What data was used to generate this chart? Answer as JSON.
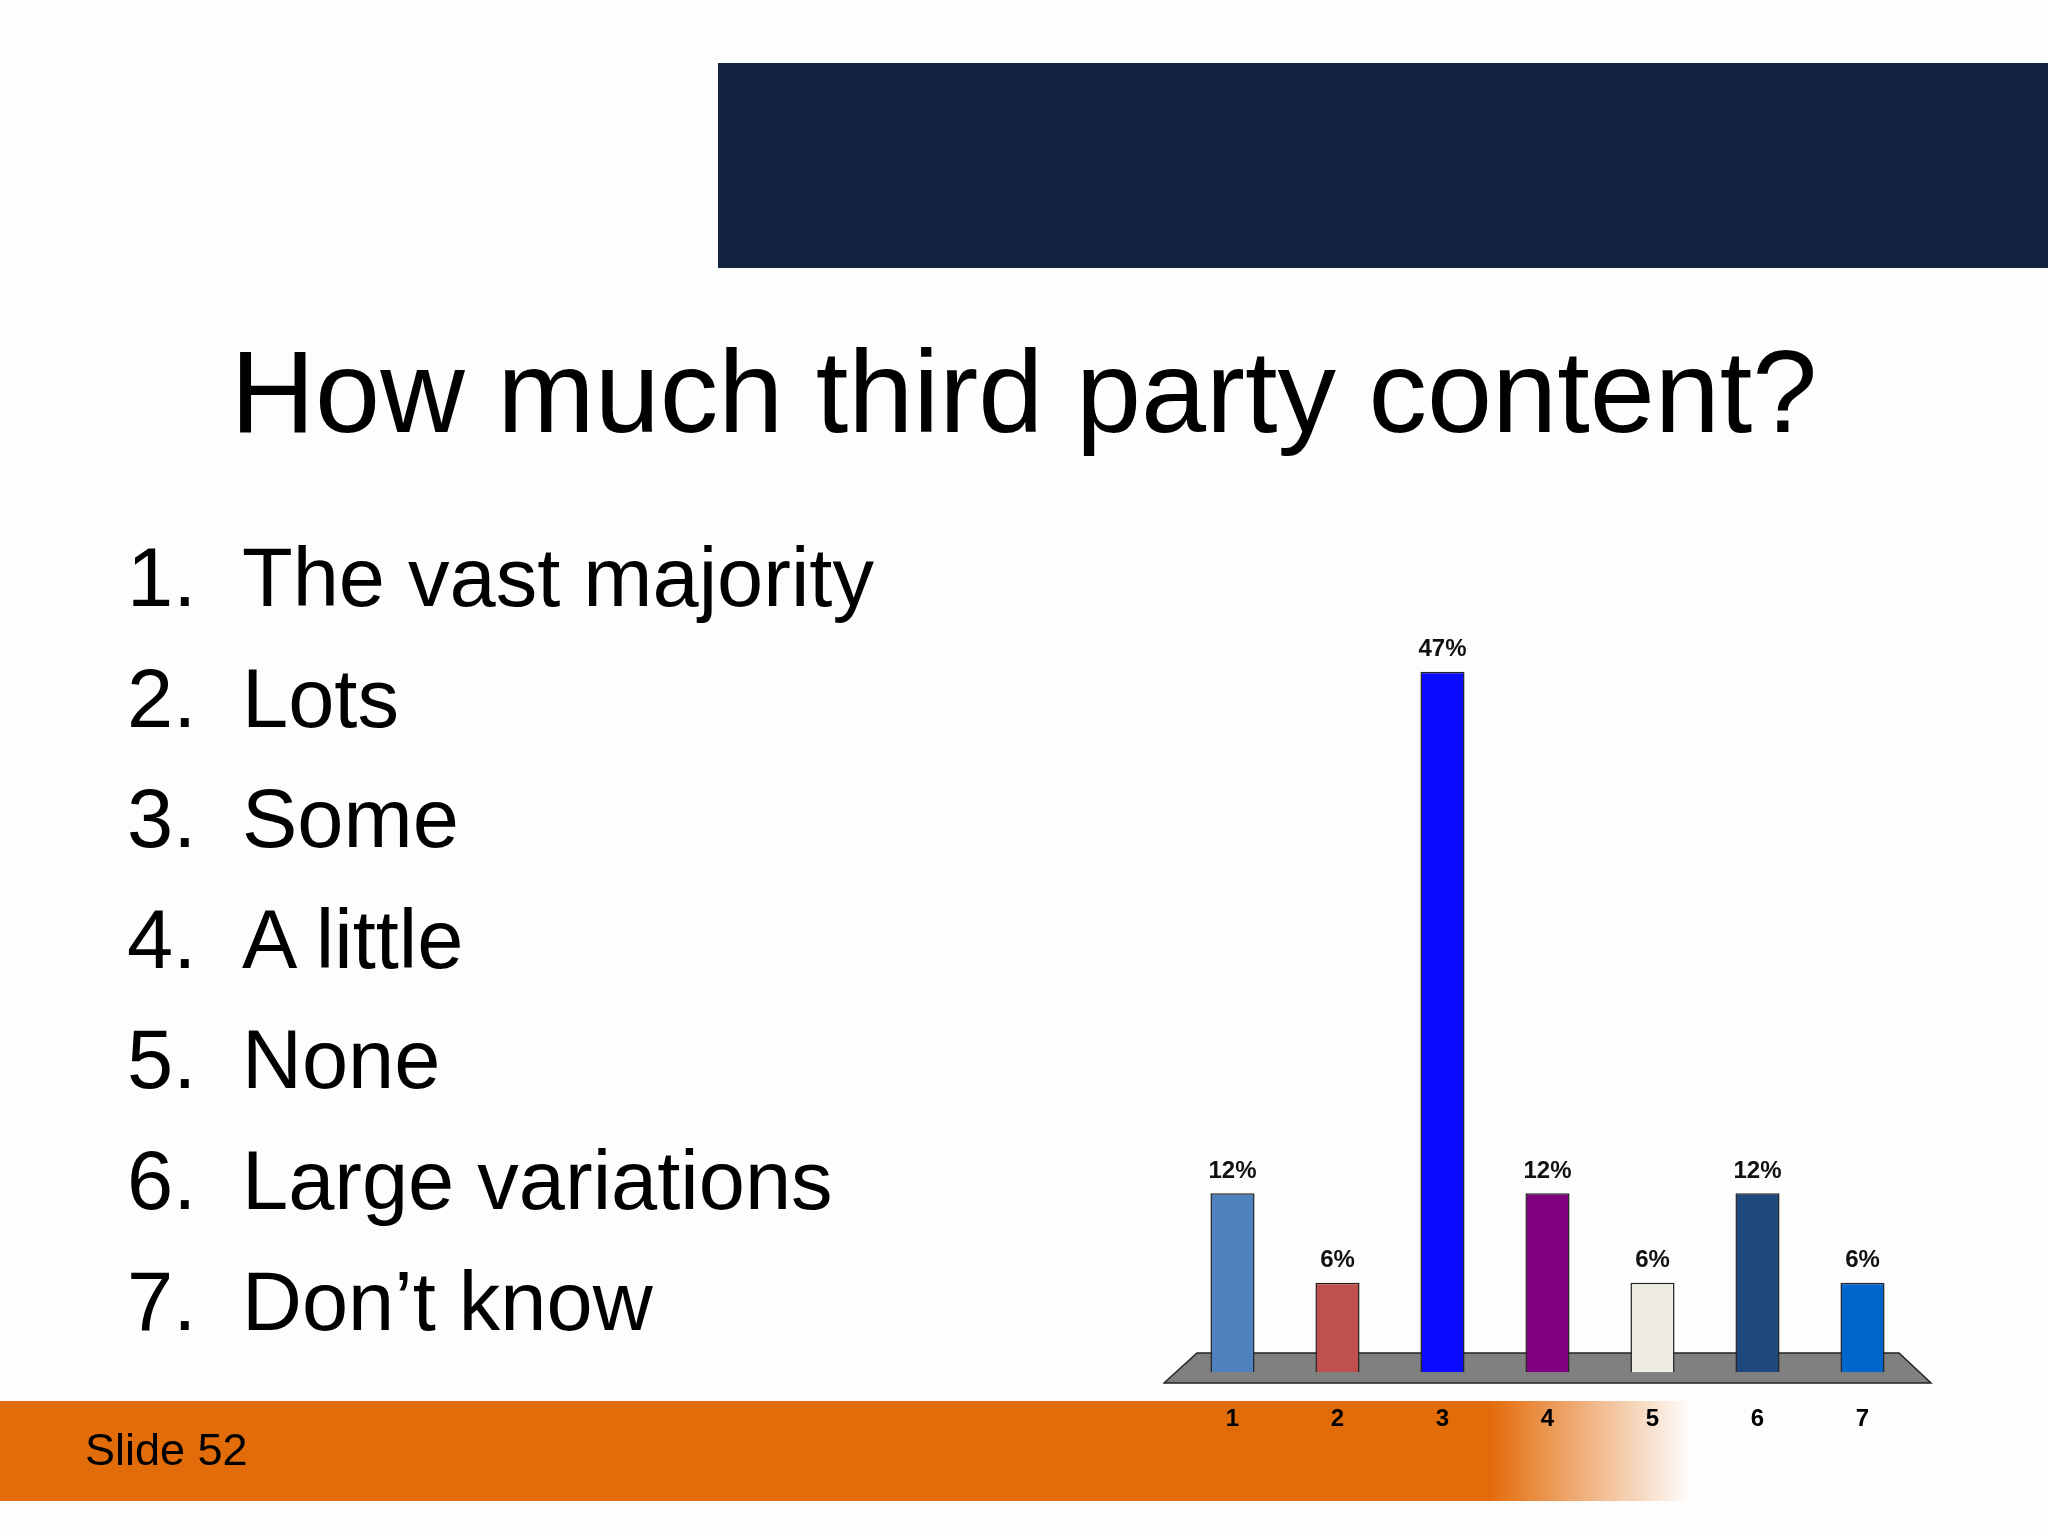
{
  "chart_data": {
    "type": "bar",
    "title": "How much third party content?",
    "categories": [
      "1",
      "2",
      "3",
      "4",
      "5",
      "6",
      "7"
    ],
    "values": [
      12,
      6,
      47,
      12,
      6,
      12,
      6
    ],
    "colors": [
      "#4f81bd",
      "#c0504d",
      "#0a0aff",
      "#800080",
      "#eeece1",
      "#1f497d",
      "#0066cc"
    ],
    "value_labels": [
      "12%",
      "6%",
      "47%",
      "12%",
      "6%",
      "12%",
      "6%"
    ],
    "tick_labels": "x",
    "annotations": [
      "1. The vast majority",
      "2. Lots",
      "3. Some",
      "4. A little",
      "5. None",
      "6. Large variations",
      "7. Don’t know",
      "Slide 52"
    ]
  }
}
